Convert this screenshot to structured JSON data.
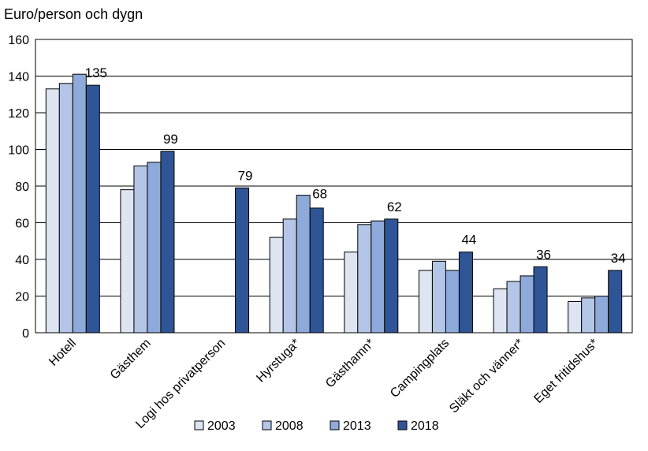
{
  "chart_data": {
    "type": "bar",
    "ylabel": "Euro/person och dygn",
    "ylim": [
      0,
      160
    ],
    "yticks": [
      0,
      20,
      40,
      60,
      80,
      100,
      120,
      140,
      160
    ],
    "grid": true,
    "legend_position": "bottom",
    "categories": [
      "Hotell",
      "Gästhem",
      "Logi hos privatperson",
      "Hyrstuga*",
      "Gästhamn*",
      "Campingplats",
      "Släkt och vänner*",
      "Eget fritidshus*"
    ],
    "series": [
      {
        "name": "2003",
        "color": "#dde4f2",
        "values": [
          133,
          78,
          null,
          52,
          44,
          34,
          24,
          17
        ]
      },
      {
        "name": "2008",
        "color": "#b4c6e7",
        "values": [
          136,
          91,
          null,
          62,
          59,
          39,
          28,
          19
        ]
      },
      {
        "name": "2013",
        "color": "#8eaadb",
        "values": [
          141,
          93,
          null,
          75,
          61,
          34,
          31,
          20
        ]
      },
      {
        "name": "2018",
        "color": "#2f5597",
        "values": [
          135,
          99,
          79,
          68,
          62,
          44,
          36,
          34
        ]
      }
    ],
    "data_labels": [
      "135",
      "99",
      "79",
      "68",
      "62",
      "44",
      "36",
      "34"
    ]
  }
}
